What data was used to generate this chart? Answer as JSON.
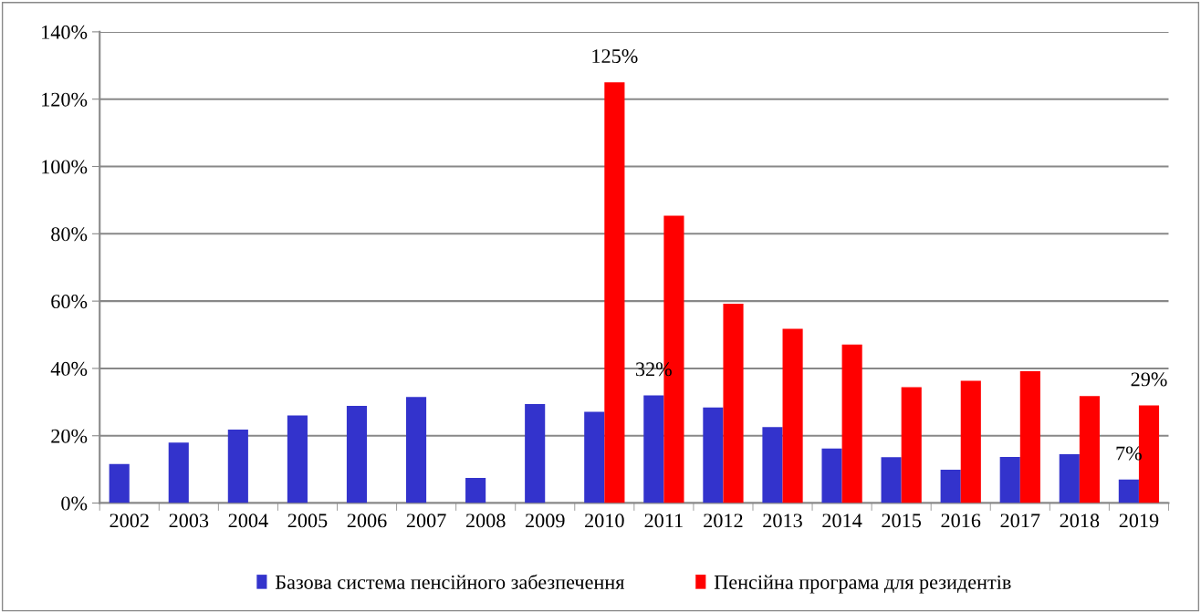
{
  "chart_data": {
    "type": "bar",
    "categories": [
      "2002",
      "2003",
      "2004",
      "2005",
      "2006",
      "2007",
      "2008",
      "2009",
      "2010",
      "2011",
      "2012",
      "2013",
      "2014",
      "2015",
      "2016",
      "2017",
      "2018",
      "2019"
    ],
    "series": [
      {
        "name": "Базова система пенсійного забезпечення",
        "color": "#3333cc",
        "values": [
          11.6,
          18.0,
          21.8,
          26.0,
          28.9,
          31.5,
          7.5,
          29.4,
          27.1,
          32,
          28.4,
          22.6,
          16.2,
          13.6,
          9.9,
          13.7,
          14.5,
          7
        ],
        "value_labels": [
          null,
          null,
          null,
          null,
          null,
          null,
          null,
          null,
          null,
          "32%",
          null,
          null,
          null,
          null,
          null,
          null,
          null,
          "7%"
        ]
      },
      {
        "name": "Пенсійна програма для резидентів",
        "color": "#ff0000",
        "values": [
          null,
          null,
          null,
          null,
          null,
          null,
          null,
          null,
          125,
          85.4,
          59.2,
          51.8,
          47.1,
          34.4,
          36.3,
          39.2,
          31.8,
          29
        ],
        "value_labels": [
          null,
          null,
          null,
          null,
          null,
          null,
          null,
          null,
          "125%",
          null,
          null,
          null,
          null,
          null,
          null,
          null,
          null,
          "29%"
        ]
      }
    ],
    "ylim": [
      0,
      140
    ],
    "yticks": [
      {
        "value": 0,
        "label": "0%"
      },
      {
        "value": 20,
        "label": "20%"
      },
      {
        "value": 40,
        "label": "40%"
      },
      {
        "value": 60,
        "label": "60%"
      },
      {
        "value": 80,
        "label": "80%"
      },
      {
        "value": 100,
        "label": "100%"
      },
      {
        "value": 120,
        "label": "120%"
      },
      {
        "value": 140,
        "label": "140%"
      }
    ],
    "grid": "y",
    "legend": "bottom"
  }
}
